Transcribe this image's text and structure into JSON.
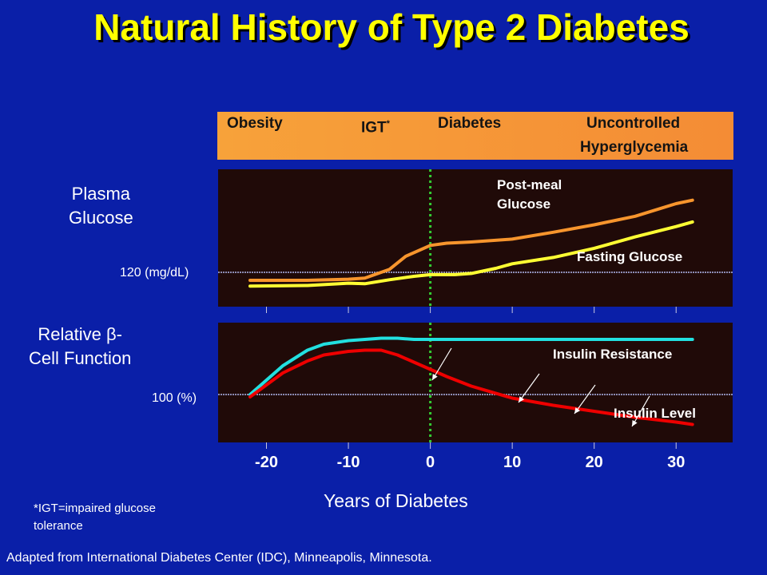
{
  "title": "Natural History of Type 2 Diabetes",
  "stages": {
    "obesity": "Obesity",
    "igt": "IGT",
    "igt_mark": "*",
    "diabetes": "Diabetes",
    "uncontrolled_line1": "Uncontrolled",
    "uncontrolled_line2": "Hyperglycemia"
  },
  "top_panel": {
    "ylabel_line1": "Plasma",
    "ylabel_line2": "Glucose",
    "ref_label": "120 (mg/dL)",
    "post_meal_line1": "Post-meal",
    "post_meal_line2": "Glucose",
    "fasting_label": "Fasting Glucose"
  },
  "bottom_panel": {
    "ylabel_line1": "Relative β-",
    "ylabel_line2": "Cell Function",
    "ref_label": "100 (%)",
    "insulin_resistance_label": "Insulin Resistance",
    "insulin_level_label": "Insulin Level"
  },
  "xlabel": "Years of Diabetes",
  "footnote_line1": "*IGT=impaired glucose",
  "footnote_line2": "tolerance",
  "source": "Adapted from International Diabetes Center (IDC), Minneapolis, Minnesota.",
  "chart_data": {
    "type": "line",
    "x_ticks": [
      -20,
      -10,
      0,
      10,
      20,
      30
    ],
    "xlim": [
      -22,
      33
    ],
    "colors": {
      "post_meal": "#f7952d",
      "fasting": "#ffff33",
      "insulin_resistance": "#22e0e0",
      "insulin_level": "#ee0000",
      "reference": "#8c8cb4",
      "divider": "#33cc33"
    },
    "top": {
      "ylim": [
        60,
        300
      ],
      "reference": 120,
      "series": [
        {
          "key": "post_meal",
          "x": [
            -22,
            -15,
            -10,
            -8,
            -5,
            -3,
            0,
            2,
            5,
            10,
            15,
            20,
            25,
            30,
            32
          ],
          "y": [
            106,
            106,
            108,
            110,
            125,
            148,
            167,
            171,
            173,
            178,
            190,
            203,
            218,
            240,
            246
          ]
        },
        {
          "key": "fasting",
          "x": [
            -22,
            -15,
            -10,
            -8,
            -5,
            -2,
            0,
            3,
            5,
            8,
            10,
            15,
            20,
            25,
            30,
            32
          ],
          "y": [
            96,
            97,
            101,
            100,
            107,
            113,
            116,
            116,
            118,
            127,
            135,
            146,
            162,
            182,
            200,
            208
          ]
        }
      ]
    },
    "bottom": {
      "ylim": [
        0,
        100
      ],
      "reference": 40,
      "series": [
        {
          "key": "insulin_resistance",
          "x": [
            -22,
            -20,
            -18,
            -15,
            -13,
            -10,
            -8,
            -6,
            -4,
            -2,
            0,
            5,
            10,
            15,
            20,
            25,
            30,
            32
          ],
          "y": [
            40,
            52,
            64,
            77,
            82,
            85,
            86,
            87,
            87,
            86,
            86,
            86,
            86,
            86,
            86,
            86,
            86,
            86
          ]
        },
        {
          "key": "insulin_level",
          "x": [
            -22,
            -20,
            -18,
            -15,
            -13,
            -10,
            -8,
            -6,
            -4,
            -2,
            0,
            2,
            5,
            10,
            15,
            20,
            25,
            30,
            32
          ],
          "y": [
            38,
            48,
            58,
            68,
            73,
            76,
            77,
            77,
            73,
            67,
            61,
            55,
            47,
            37,
            31,
            26,
            21,
            17,
            15
          ]
        }
      ]
    }
  }
}
